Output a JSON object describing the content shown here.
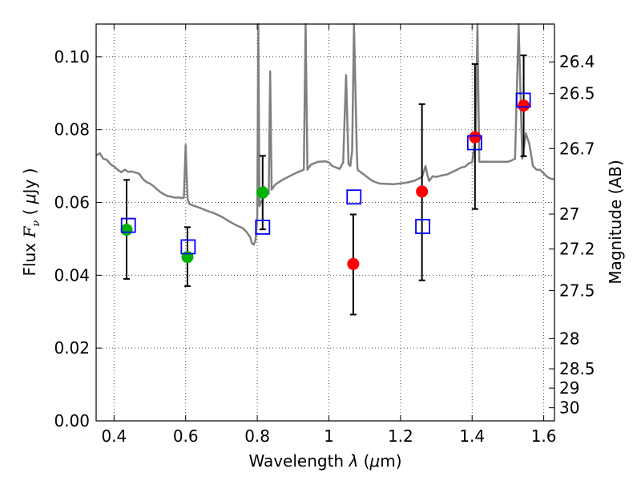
{
  "chart_data": {
    "type": "scatter",
    "xlabel": "Wavelength  λ (μm)",
    "ylabel": "Flux  F_ν  ( μJy )",
    "right_ylabel": "Magnitude (AB)",
    "xlim": [
      0.35,
      1.63
    ],
    "ylim": [
      0.0,
      0.109
    ],
    "x_ticks": [
      0.4,
      0.6,
      0.8,
      1.0,
      1.2,
      1.4,
      1.6
    ],
    "x_tick_labels": [
      "0.4",
      "0.6",
      "0.8",
      "1",
      "1.2",
      "1.4",
      "1.6"
    ],
    "y_ticks": [
      0.0,
      0.02,
      0.04,
      0.06,
      0.08,
      0.1
    ],
    "y_tick_labels": [
      "0.00",
      "0.02",
      "0.04",
      "0.06",
      "0.08",
      "0.10"
    ],
    "right_ticks": [
      {
        "label": "26.4",
        "flux": 0.0986
      },
      {
        "label": "26.5",
        "flux": 0.0899
      },
      {
        "label": "26.7",
        "flux": 0.0748
      },
      {
        "label": "27",
        "flux": 0.0568
      },
      {
        "label": "27.2",
        "flux": 0.0472
      },
      {
        "label": "27.5",
        "flux": 0.0358
      },
      {
        "label": "28",
        "flux": 0.0226
      },
      {
        "label": "28.5",
        "flux": 0.0143
      },
      {
        "label": "29",
        "flux": 0.009
      },
      {
        "label": "30",
        "flux": 0.0036
      }
    ],
    "grid": true,
    "series": [
      {
        "role": "template-spectrum",
        "style": "line",
        "color": "#808080",
        "points": [
          [
            0.35,
            0.0729
          ],
          [
            0.36,
            0.0735
          ],
          [
            0.37,
            0.072
          ],
          [
            0.38,
            0.0717
          ],
          [
            0.39,
            0.0705
          ],
          [
            0.4,
            0.0699
          ],
          [
            0.41,
            0.069
          ],
          [
            0.42,
            0.0683
          ],
          [
            0.43,
            0.069
          ],
          [
            0.44,
            0.0684
          ],
          [
            0.45,
            0.0685
          ],
          [
            0.46,
            0.0682
          ],
          [
            0.47,
            0.0679
          ],
          [
            0.48,
            0.0665
          ],
          [
            0.49,
            0.0656
          ],
          [
            0.5,
            0.0652
          ],
          [
            0.51,
            0.0645
          ],
          [
            0.52,
            0.0636
          ],
          [
            0.53,
            0.0628
          ],
          [
            0.54,
            0.0622
          ],
          [
            0.55,
            0.0617
          ],
          [
            0.56,
            0.0616
          ],
          [
            0.57,
            0.0613
          ],
          [
            0.58,
            0.0614
          ],
          [
            0.59,
            0.0612
          ],
          [
            0.595,
            0.0613
          ],
          [
            0.6,
            0.0758
          ],
          [
            0.605,
            0.0612
          ],
          [
            0.61,
            0.0596
          ],
          [
            0.62,
            0.0592
          ],
          [
            0.64,
            0.0585
          ],
          [
            0.66,
            0.0577
          ],
          [
            0.68,
            0.057
          ],
          [
            0.7,
            0.0561
          ],
          [
            0.72,
            0.0549
          ],
          [
            0.74,
            0.0538
          ],
          [
            0.76,
            0.0529
          ],
          [
            0.77,
            0.0519
          ],
          [
            0.78,
            0.0505
          ],
          [
            0.785,
            0.0488
          ],
          [
            0.79,
            0.0484
          ],
          [
            0.795,
            0.0496
          ],
          [
            0.8,
            0.0562
          ],
          [
            0.803,
            0.11
          ],
          [
            0.806,
            0.059
          ],
          [
            0.81,
            0.06
          ],
          [
            0.815,
            0.0607
          ],
          [
            0.82,
            0.0642
          ],
          [
            0.826,
            0.0635
          ],
          [
            0.832,
            0.0624
          ],
          [
            0.836,
            0.096
          ],
          [
            0.84,
            0.0635
          ],
          [
            0.85,
            0.0649
          ],
          [
            0.87,
            0.0662
          ],
          [
            0.89,
            0.0672
          ],
          [
            0.91,
            0.0682
          ],
          [
            0.93,
            0.069
          ],
          [
            0.935,
            0.11
          ],
          [
            0.94,
            0.069
          ],
          [
            0.95,
            0.0704
          ],
          [
            0.97,
            0.0712
          ],
          [
            0.99,
            0.0713
          ],
          [
            1.0,
            0.071
          ],
          [
            1.01,
            0.07
          ],
          [
            1.03,
            0.0692
          ],
          [
            1.04,
            0.071
          ],
          [
            1.048,
            0.095
          ],
          [
            1.055,
            0.0705
          ],
          [
            1.06,
            0.07
          ],
          [
            1.065,
            0.0742
          ],
          [
            1.07,
            0.11
          ],
          [
            1.078,
            0.074
          ],
          [
            1.08,
            0.069
          ],
          [
            1.1,
            0.0675
          ],
          [
            1.12,
            0.066
          ],
          [
            1.14,
            0.0652
          ],
          [
            1.16,
            0.0651
          ],
          [
            1.18,
            0.065
          ],
          [
            1.2,
            0.0652
          ],
          [
            1.22,
            0.0655
          ],
          [
            1.24,
            0.066
          ],
          [
            1.26,
            0.067
          ],
          [
            1.27,
            0.07
          ],
          [
            1.275,
            0.0675
          ],
          [
            1.28,
            0.0659
          ],
          [
            1.29,
            0.0672
          ],
          [
            1.3,
            0.067
          ],
          [
            1.31,
            0.0673
          ],
          [
            1.33,
            0.0677
          ],
          [
            1.35,
            0.0686
          ],
          [
            1.37,
            0.0696
          ],
          [
            1.38,
            0.0698
          ],
          [
            1.39,
            0.0707
          ],
          [
            1.4,
            0.071
          ],
          [
            1.41,
            0.078
          ],
          [
            1.415,
            0.11
          ],
          [
            1.42,
            0.0712
          ],
          [
            1.43,
            0.0712
          ],
          [
            1.44,
            0.0712
          ],
          [
            1.46,
            0.0712
          ],
          [
            1.48,
            0.0712
          ],
          [
            1.5,
            0.0712
          ],
          [
            1.51,
            0.0715
          ],
          [
            1.52,
            0.072
          ],
          [
            1.53,
            0.11
          ],
          [
            1.54,
            0.072
          ],
          [
            1.55,
            0.079
          ],
          [
            1.56,
            0.076
          ],
          [
            1.57,
            0.07
          ],
          [
            1.58,
            0.069
          ],
          [
            1.59,
            0.069
          ],
          [
            1.6,
            0.068
          ],
          [
            1.61,
            0.067
          ],
          [
            1.62,
            0.0665
          ],
          [
            1.63,
            0.0664
          ]
        ]
      },
      {
        "role": "model-photometry",
        "style": "open-square",
        "color": "#0000ff",
        "points": [
          [
            0.44,
            0.0537
          ],
          [
            0.607,
            0.0478
          ],
          [
            0.815,
            0.0532
          ],
          [
            1.07,
            0.0615
          ],
          [
            1.262,
            0.0534
          ],
          [
            1.407,
            0.0764
          ],
          [
            1.543,
            0.0881
          ]
        ]
      },
      {
        "role": "observed-green",
        "style": "filled-circle",
        "color": "#00b300",
        "points": [
          {
            "x": 0.435,
            "y": 0.0525,
            "lo": 0.039,
            "hi": 0.0662
          },
          {
            "x": 0.605,
            "y": 0.045,
            "lo": 0.037,
            "hi": 0.0532
          },
          {
            "x": 0.815,
            "y": 0.0627,
            "lo": 0.0526,
            "hi": 0.0728
          }
        ]
      },
      {
        "role": "observed-red",
        "style": "filled-circle",
        "color": "#ff0000",
        "points": [
          {
            "x": 1.068,
            "y": 0.0431,
            "lo": 0.0292,
            "hi": 0.0567
          },
          {
            "x": 1.26,
            "y": 0.063,
            "lo": 0.0386,
            "hi": 0.087
          },
          {
            "x": 1.408,
            "y": 0.0779,
            "lo": 0.0582,
            "hi": 0.098
          },
          {
            "x": 1.544,
            "y": 0.0866,
            "lo": 0.0727,
            "hi": 0.1004
          }
        ]
      }
    ]
  }
}
